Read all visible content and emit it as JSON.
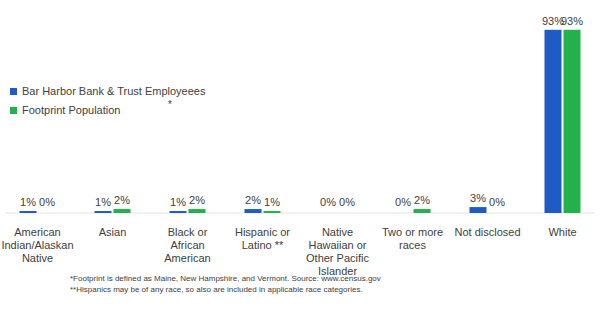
{
  "chart_data": {
    "type": "bar",
    "categories": [
      "American Indian/Alaskan Native",
      "Asian",
      "Black or African American",
      "Hispanic or Latino **",
      "Native Hawaiian or Other Pacific Islander",
      "Two or more races",
      "Not disclosed",
      "White"
    ],
    "series": [
      {
        "name": "Bar Harbor Bank & Trust Employeees",
        "color": "#1f5bc4",
        "values": [
          1,
          1,
          1,
          2,
          0,
          0,
          3,
          93
        ],
        "value_labels": [
          "1%",
          "1%",
          "1%",
          "2%",
          "0%",
          "0%",
          "3%",
          "93%"
        ]
      },
      {
        "name": "Footprint Population",
        "color": "#22b14c",
        "values": [
          0,
          2,
          2,
          1,
          0,
          2,
          0,
          93
        ],
        "value_labels": [
          "0%",
          "2%",
          "2%",
          "1%",
          "0%",
          "2%",
          "0%",
          "93%"
        ]
      }
    ],
    "ylim": [
      0,
      100
    ],
    "data_labels": true,
    "tick_labels": "x",
    "legend": "left",
    "annotations": [
      "*"
    ],
    "notes": [
      "*Footprint is defined as Maine, New Hampshire, and Vermont. Source: www.census.gov",
      "**Hispanics may be of any race, so also are included in applicable race categories."
    ]
  }
}
